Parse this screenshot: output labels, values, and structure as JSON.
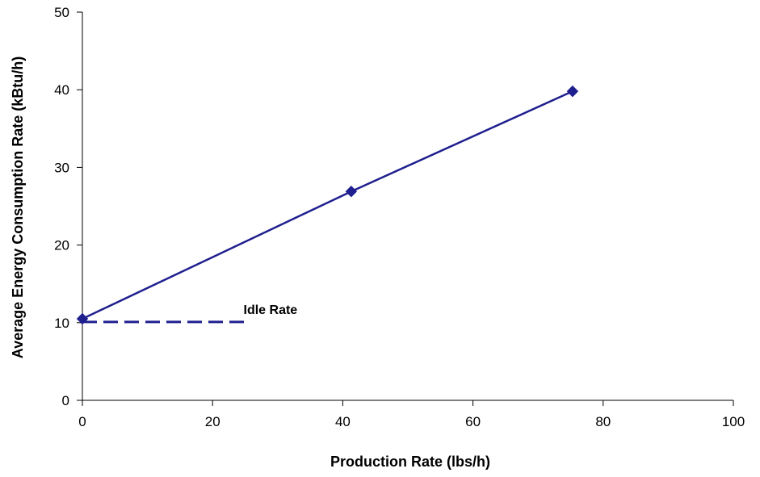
{
  "chart_data": {
    "type": "scatter",
    "title": "",
    "xlabel": "Production Rate (lbs/h)",
    "ylabel": "Average Energy Consumption Rate (kBtu/h)",
    "xlim": [
      0,
      100
    ],
    "ylim": [
      0,
      50
    ],
    "x_ticks": [
      0,
      20,
      40,
      60,
      80,
      100
    ],
    "y_ticks": [
      0,
      10,
      20,
      30,
      40,
      50
    ],
    "grid": false,
    "legend": "none",
    "series": [
      {
        "x": [
          0,
          41.3,
          75.3
        ],
        "y": [
          10.5,
          26.9,
          39.8
        ],
        "color": "#1f1f8f",
        "marker": "diamond",
        "line": "solid"
      }
    ],
    "annotations": [
      {
        "text": "Idle Rate",
        "line_x": [
          0,
          25
        ],
        "line_y": [
          10.1,
          10.1
        ],
        "line_style": "dashed",
        "color": "#1f1f8f"
      }
    ]
  }
}
